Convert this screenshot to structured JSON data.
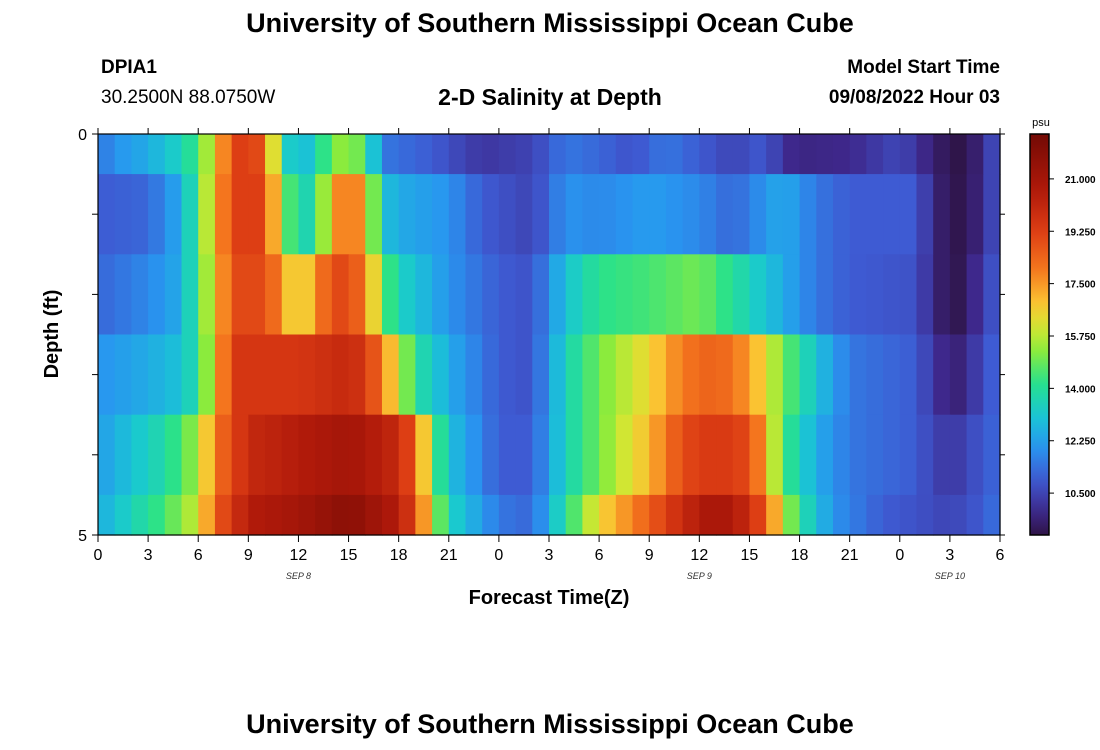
{
  "header": {
    "title": "University of Southern Mississippi Ocean Cube",
    "station_id": "DPIA1",
    "station_coords": "30.2500N  88.0750W",
    "plot_title": "2-D Salinity at Depth",
    "model_start_label": "Model Start Time",
    "model_start_value": "09/08/2022 Hour 03"
  },
  "footer": {
    "title": "University of Southern Mississippi Ocean Cube"
  },
  "chart_data": {
    "type": "heatmap",
    "title": "2-D Salinity at Depth",
    "xlabel": "Forecast Time(Z)",
    "ylabel": "Depth (ft)",
    "x_tick_labels": [
      "0",
      "3",
      "6",
      "9",
      "12",
      "15",
      "18",
      "21",
      "0",
      "3",
      "6",
      "9",
      "12",
      "15",
      "18",
      "21",
      "0",
      "3",
      "6"
    ],
    "x_date_labels": [
      {
        "label": "SEP 8",
        "hour": 12
      },
      {
        "label": "SEP 9",
        "hour": 36
      },
      {
        "label": "SEP 10",
        "hour": 51
      }
    ],
    "y_tick_labels": [
      "0",
      "5"
    ],
    "ylim": [
      0,
      5
    ],
    "xlim_hours": [
      0,
      54
    ],
    "colorbar": {
      "unit": "psu",
      "min": 9.1,
      "max": 22.5,
      "tick_labels": [
        "21.000",
        "19.250",
        "17.500",
        "15.750",
        "14.000",
        "12.250",
        "10.500"
      ],
      "tick_values": [
        21.0,
        19.25,
        17.5,
        15.75,
        14.0,
        12.25,
        10.5
      ]
    },
    "rows": [
      {
        "depth_range": [
          0,
          0.5
        ],
        "points": [
          [
            0,
            11.4
          ],
          [
            1,
            12.0
          ],
          [
            3,
            12.5
          ],
          [
            5,
            13.5
          ],
          [
            6,
            14.5
          ],
          [
            7,
            16.5
          ],
          [
            8,
            19.0
          ],
          [
            9,
            19.5
          ],
          [
            10,
            18.5
          ],
          [
            11,
            14.0
          ],
          [
            12,
            12.5
          ],
          [
            13,
            13.5
          ],
          [
            14,
            15.0
          ],
          [
            15,
            15.5
          ],
          [
            16,
            14.5
          ],
          [
            17,
            11.5
          ],
          [
            20,
            11.0
          ],
          [
            23,
            10.2
          ],
          [
            26,
            10.5
          ],
          [
            28,
            11.5
          ],
          [
            30,
            11.2
          ],
          [
            32,
            10.8
          ],
          [
            34,
            11.5
          ],
          [
            36,
            11.0
          ],
          [
            38,
            10.5
          ],
          [
            40,
            11.0
          ],
          [
            41,
            10.0
          ],
          [
            42,
            9.8
          ],
          [
            45,
            9.9
          ],
          [
            48,
            10.6
          ],
          [
            50,
            9.6
          ],
          [
            51,
            9.2
          ],
          [
            52,
            9.1
          ],
          [
            53,
            10.0
          ],
          [
            54,
            11.0
          ]
        ]
      },
      {
        "depth_range": [
          0.5,
          1.5
        ],
        "points": [
          [
            0,
            11.0
          ],
          [
            3,
            11.2
          ],
          [
            5,
            12.5
          ],
          [
            6,
            14.5
          ],
          [
            7,
            17.0
          ],
          [
            8,
            19.0
          ],
          [
            9,
            19.5
          ],
          [
            10,
            19.0
          ],
          [
            11,
            15.5
          ],
          [
            12,
            13.5
          ],
          [
            13,
            13.8
          ],
          [
            14,
            17.0
          ],
          [
            15,
            18.5
          ],
          [
            16,
            17.0
          ],
          [
            17,
            13.0
          ],
          [
            18,
            12.5
          ],
          [
            21,
            12.0
          ],
          [
            23,
            11.0
          ],
          [
            26,
            10.5
          ],
          [
            28,
            12.0
          ],
          [
            30,
            11.8
          ],
          [
            33,
            12.2
          ],
          [
            36,
            11.8
          ],
          [
            38,
            11.2
          ],
          [
            41,
            12.5
          ],
          [
            43,
            11.5
          ],
          [
            45,
            11.0
          ],
          [
            49,
            11.0
          ],
          [
            50,
            9.8
          ],
          [
            51,
            9.2
          ],
          [
            52,
            9.2
          ],
          [
            53,
            10.0
          ],
          [
            54,
            11.0
          ]
        ]
      },
      {
        "depth_range": [
          1.5,
          2.5
        ],
        "points": [
          [
            0,
            11.2
          ],
          [
            3,
            11.8
          ],
          [
            5,
            12.5
          ],
          [
            6,
            14.5
          ],
          [
            7,
            16.5
          ],
          [
            8,
            19.0
          ],
          [
            10,
            19.0
          ],
          [
            12,
            16.0
          ],
          [
            13,
            17.5
          ],
          [
            14,
            19.0
          ],
          [
            15,
            19.0
          ],
          [
            16,
            18.0
          ],
          [
            17,
            15.0
          ],
          [
            18,
            13.5
          ],
          [
            21,
            12.0
          ],
          [
            24,
            11.0
          ],
          [
            26,
            10.8
          ],
          [
            28,
            13.0
          ],
          [
            30,
            14.2
          ],
          [
            33,
            14.5
          ],
          [
            36,
            15.0
          ],
          [
            38,
            14.0
          ],
          [
            41,
            12.5
          ],
          [
            43,
            11.5
          ],
          [
            45,
            11.0
          ],
          [
            49,
            10.8
          ],
          [
            50,
            9.8
          ],
          [
            51,
            9.2
          ],
          [
            52,
            9.3
          ],
          [
            53,
            10.5
          ],
          [
            54,
            11.0
          ]
        ]
      },
      {
        "depth_range": [
          2.5,
          3.5
        ],
        "points": [
          [
            0,
            12.0
          ],
          [
            3,
            12.5
          ],
          [
            5,
            13.0
          ],
          [
            6,
            14.0
          ],
          [
            7,
            16.5
          ],
          [
            8,
            19.5
          ],
          [
            12,
            19.5
          ],
          [
            15,
            20.0
          ],
          [
            16,
            19.5
          ],
          [
            17,
            18.0
          ],
          [
            18,
            16.0
          ],
          [
            19,
            14.0
          ],
          [
            21,
            12.5
          ],
          [
            24,
            11.0
          ],
          [
            26,
            10.8
          ],
          [
            28,
            13.5
          ],
          [
            30,
            15.0
          ],
          [
            33,
            16.5
          ],
          [
            35,
            18.0
          ],
          [
            37,
            18.5
          ],
          [
            39,
            17.5
          ],
          [
            41,
            15.0
          ],
          [
            43,
            13.0
          ],
          [
            45,
            11.5
          ],
          [
            49,
            11.0
          ],
          [
            50,
            10.2
          ],
          [
            51,
            9.6
          ],
          [
            52,
            9.8
          ],
          [
            53,
            10.8
          ],
          [
            54,
            11.2
          ]
        ]
      },
      {
        "depth_range": [
          3.5,
          4.5
        ],
        "points": [
          [
            0,
            12.2
          ],
          [
            2,
            13.0
          ],
          [
            4,
            13.8
          ],
          [
            6,
            15.5
          ],
          [
            7,
            18.0
          ],
          [
            9,
            20.0
          ],
          [
            12,
            20.5
          ],
          [
            15,
            21.0
          ],
          [
            18,
            20.0
          ],
          [
            19,
            18.5
          ],
          [
            20,
            15.0
          ],
          [
            21,
            13.0
          ],
          [
            24,
            11.0
          ],
          [
            26,
            11.0
          ],
          [
            28,
            13.5
          ],
          [
            30,
            15.0
          ],
          [
            33,
            17.0
          ],
          [
            35,
            19.0
          ],
          [
            37,
            19.5
          ],
          [
            39,
            19.0
          ],
          [
            40,
            17.0
          ],
          [
            41,
            14.5
          ],
          [
            43,
            12.5
          ],
          [
            45,
            11.5
          ],
          [
            49,
            11.0
          ],
          [
            50,
            10.5
          ],
          [
            51,
            10.2
          ],
          [
            52,
            10.5
          ],
          [
            53,
            11.0
          ],
          [
            54,
            11.2
          ]
        ]
      },
      {
        "depth_range": [
          4.5,
          5
        ],
        "points": [
          [
            0,
            12.5
          ],
          [
            2,
            13.5
          ],
          [
            4,
            14.5
          ],
          [
            6,
            16.0
          ],
          [
            7,
            18.5
          ],
          [
            9,
            20.5
          ],
          [
            12,
            21.0
          ],
          [
            15,
            21.8
          ],
          [
            18,
            20.5
          ],
          [
            19,
            19.0
          ],
          [
            20,
            16.0
          ],
          [
            21,
            13.5
          ],
          [
            24,
            11.5
          ],
          [
            26,
            11.2
          ],
          [
            28,
            14.0
          ],
          [
            30,
            16.5
          ],
          [
            33,
            18.5
          ],
          [
            35,
            20.0
          ],
          [
            37,
            21.0
          ],
          [
            39,
            20.0
          ],
          [
            40,
            18.5
          ],
          [
            41,
            16.0
          ],
          [
            42,
            14.0
          ],
          [
            44,
            12.0
          ],
          [
            47,
            11.0
          ],
          [
            49,
            10.8
          ],
          [
            51,
            10.5
          ],
          [
            53,
            11.0
          ],
          [
            54,
            11.5
          ]
        ]
      }
    ]
  }
}
